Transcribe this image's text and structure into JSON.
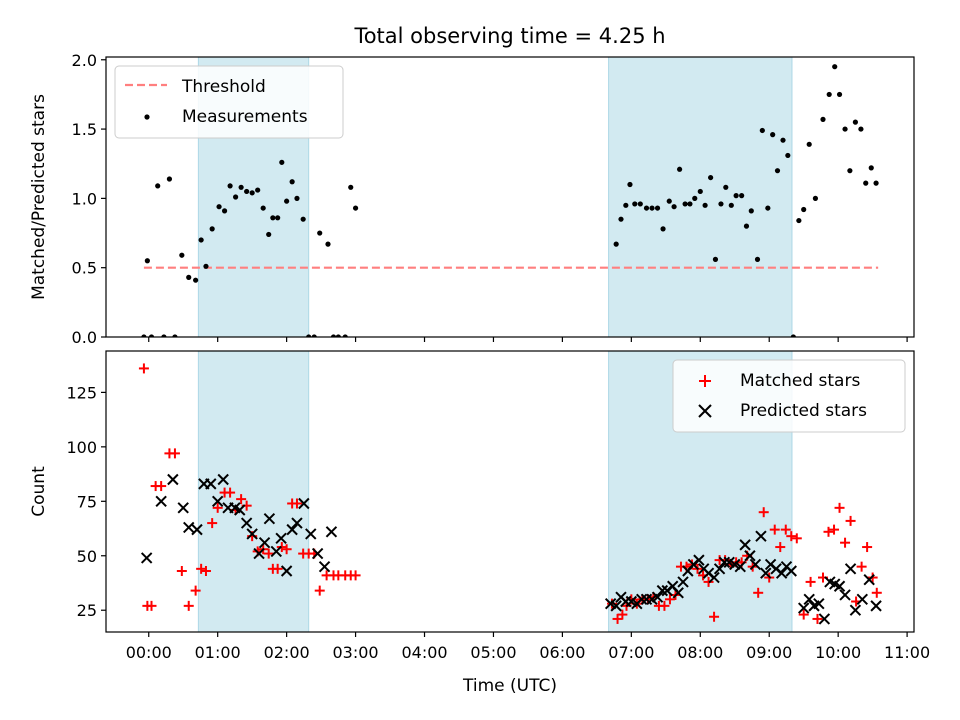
{
  "figure": {
    "title": "Total observing time = 4.25 h",
    "xlabel": "Time (UTC)"
  },
  "colors": {
    "shade": "#add8e6",
    "threshold": "#ff7f7f",
    "measurement": "#000000",
    "matched": "#ff0000",
    "predicted": "#000000"
  },
  "chart_data": [
    {
      "type": "scatter",
      "ylabel": "Matched/Predicted stars",
      "xlim": [
        -0.62,
        11.1
      ],
      "ylim": [
        0,
        2.02
      ],
      "yticks": [
        0.0,
        0.5,
        1.0,
        1.5,
        2.0
      ],
      "ytick_labels": [
        "0.0",
        "0.5",
        "1.0",
        "1.5",
        "2.0"
      ],
      "legend": {
        "location": "upper left",
        "entries": [
          "Threshold",
          "Measurements"
        ]
      },
      "shaded_intervals": [
        [
          0.72,
          2.32
        ],
        [
          6.67,
          9.33
        ]
      ],
      "threshold": {
        "name": "Threshold",
        "value": 0.5,
        "x_range": [
          -0.07,
          10.58
        ]
      },
      "series": [
        {
          "name": "Measurements",
          "x": [
            -0.07,
            -0.02,
            0.04,
            0.13,
            0.22,
            0.3,
            0.38,
            0.48,
            0.58,
            0.68,
            0.76,
            0.83,
            0.92,
            1.02,
            1.1,
            1.18,
            1.26,
            1.34,
            1.42,
            1.5,
            1.58,
            1.66,
            1.74,
            1.8,
            1.87,
            1.93,
            2.0,
            2.08,
            2.15,
            2.24,
            2.32,
            2.4,
            2.48,
            2.6,
            2.68,
            2.75,
            2.85,
            2.93,
            3.0,
            6.78,
            6.85,
            6.92,
            6.98,
            7.05,
            7.13,
            7.22,
            7.3,
            7.38,
            7.46,
            7.55,
            7.62,
            7.7,
            7.78,
            7.85,
            7.92,
            8.0,
            8.07,
            8.15,
            8.22,
            8.3,
            8.37,
            8.45,
            8.52,
            8.6,
            8.67,
            8.74,
            8.83,
            8.9,
            8.98,
            9.05,
            9.12,
            9.2,
            9.27,
            9.35,
            9.43,
            9.5,
            9.58,
            9.67,
            9.78,
            9.87,
            9.95,
            10.02,
            10.1,
            10.17,
            10.25,
            10.33,
            10.4,
            10.48,
            10.55
          ],
          "y": [
            0.0,
            0.55,
            0.0,
            1.09,
            0.0,
            1.14,
            0.0,
            0.59,
            0.43,
            0.41,
            0.7,
            0.51,
            0.78,
            0.94,
            0.91,
            1.09,
            1.01,
            1.08,
            1.05,
            1.04,
            1.06,
            0.93,
            0.74,
            0.86,
            0.86,
            1.26,
            0.98,
            1.12,
            1.0,
            0.85,
            0.0,
            0.0,
            0.75,
            0.67,
            0.0,
            0.0,
            0.0,
            1.08,
            0.93,
            0.67,
            0.85,
            0.95,
            1.1,
            0.96,
            0.96,
            0.93,
            0.93,
            0.93,
            0.78,
            0.98,
            0.94,
            1.21,
            0.96,
            0.96,
            1.0,
            1.05,
            0.95,
            1.15,
            0.56,
            0.96,
            1.08,
            0.95,
            1.02,
            1.02,
            0.8,
            0.91,
            0.56,
            1.49,
            0.93,
            1.46,
            1.2,
            1.42,
            1.31,
            0.0,
            0.84,
            0.92,
            1.39,
            1.0,
            1.57,
            1.75,
            1.95,
            1.75,
            1.5,
            1.2,
            1.55,
            1.5,
            1.11,
            1.22,
            1.11
          ]
        }
      ]
    },
    {
      "type": "scatter",
      "ylabel": "Count",
      "xlim": [
        -0.62,
        11.1
      ],
      "ylim": [
        15,
        144
      ],
      "yticks": [
        25,
        50,
        75,
        100,
        125
      ],
      "ytick_labels": [
        "25",
        "50",
        "75",
        "100",
        "125"
      ],
      "xticks": [
        0,
        1,
        2,
        3,
        4,
        5,
        6,
        7,
        8,
        9,
        10,
        11
      ],
      "xtick_labels": [
        "00:00",
        "01:00",
        "02:00",
        "03:00",
        "04:00",
        "05:00",
        "06:00",
        "07:00",
        "08:00",
        "09:00",
        "10:00",
        "11:00"
      ],
      "legend": {
        "location": "upper right",
        "entries": [
          "Matched stars",
          "Predicted stars"
        ]
      },
      "shaded_intervals": [
        [
          0.72,
          2.32
        ],
        [
          6.67,
          9.33
        ]
      ],
      "series": [
        {
          "name": "Matched stars",
          "marker": "+",
          "x": [
            -0.07,
            -0.02,
            0.04,
            0.1,
            0.18,
            0.3,
            0.38,
            0.48,
            0.58,
            0.68,
            0.76,
            0.83,
            0.92,
            1.0,
            1.1,
            1.18,
            1.26,
            1.34,
            1.42,
            1.5,
            1.58,
            1.66,
            1.74,
            1.8,
            1.87,
            1.93,
            2.0,
            2.08,
            2.15,
            2.24,
            2.32,
            2.4,
            2.48,
            2.58,
            2.68,
            2.75,
            2.85,
            2.93,
            3.0,
            6.72,
            6.8,
            6.87,
            6.93,
            7.0,
            7.08,
            7.16,
            7.24,
            7.32,
            7.4,
            7.48,
            7.56,
            7.64,
            7.72,
            7.8,
            7.88,
            7.96,
            8.04,
            8.12,
            8.2,
            8.28,
            8.36,
            8.44,
            8.52,
            8.6,
            8.68,
            8.76,
            8.84,
            8.92,
            9.0,
            9.08,
            9.16,
            9.24,
            9.32,
            9.4,
            9.5,
            9.6,
            9.7,
            9.78,
            9.86,
            9.94,
            10.02,
            10.1,
            10.18,
            10.26,
            10.34,
            10.42,
            10.5,
            10.56
          ],
          "y": [
            136,
            27,
            27,
            82,
            82,
            97,
            97,
            43,
            27,
            34,
            44,
            43,
            65,
            72,
            79,
            79,
            71,
            76,
            73,
            59,
            52,
            53,
            51,
            44,
            44,
            54,
            53,
            74,
            74,
            51,
            51,
            51,
            34,
            41,
            41,
            41,
            41,
            41,
            41,
            28,
            21,
            23,
            27,
            30,
            28,
            30,
            30,
            31,
            27,
            27,
            30,
            32,
            45,
            45,
            46,
            44,
            41,
            38,
            22,
            48,
            48,
            46,
            47,
            47,
            50,
            45,
            33,
            70,
            40,
            62,
            54,
            62,
            59,
            58,
            23,
            38,
            21,
            40,
            61,
            62,
            72,
            56,
            66,
            29,
            45,
            54,
            40,
            33
          ]
        },
        {
          "name": "Predicted stars",
          "marker": "x",
          "x": [
            -0.03,
            0.18,
            0.35,
            0.5,
            0.58,
            0.7,
            0.8,
            0.9,
            1.0,
            1.08,
            1.15,
            1.25,
            1.32,
            1.42,
            1.5,
            1.6,
            1.68,
            1.75,
            1.85,
            1.92,
            2.0,
            2.08,
            2.15,
            2.25,
            2.35,
            2.45,
            2.55,
            2.65,
            6.7,
            6.78,
            6.85,
            6.92,
            7.0,
            7.08,
            7.15,
            7.22,
            7.3,
            7.38,
            7.45,
            7.52,
            7.6,
            7.68,
            7.75,
            7.82,
            7.9,
            7.98,
            8.05,
            8.12,
            8.2,
            8.28,
            8.35,
            8.42,
            8.5,
            8.58,
            8.65,
            8.72,
            8.8,
            8.88,
            8.95,
            9.02,
            9.1,
            9.18,
            9.25,
            9.32,
            9.5,
            9.58,
            9.65,
            9.72,
            9.8,
            9.88,
            9.95,
            10.02,
            10.1,
            10.18,
            10.25,
            10.35,
            10.45,
            10.55
          ],
          "y": [
            49,
            75,
            85,
            72,
            63,
            62,
            83,
            83,
            75,
            85,
            72,
            72,
            71,
            65,
            60,
            51,
            56,
            67,
            52,
            58,
            43,
            62,
            65,
            74,
            60,
            51,
            45,
            61,
            28,
            27,
            31,
            29,
            29,
            28,
            30,
            30,
            30,
            31,
            34,
            34,
            36,
            33,
            38,
            43,
            46,
            48,
            44,
            42,
            40,
            44,
            47,
            47,
            46,
            45,
            55,
            50,
            46,
            59,
            42,
            46,
            44,
            42,
            45,
            43,
            26,
            30,
            27,
            28,
            21,
            38,
            37,
            36,
            32,
            44,
            25,
            30,
            39,
            27
          ]
        }
      ]
    }
  ]
}
